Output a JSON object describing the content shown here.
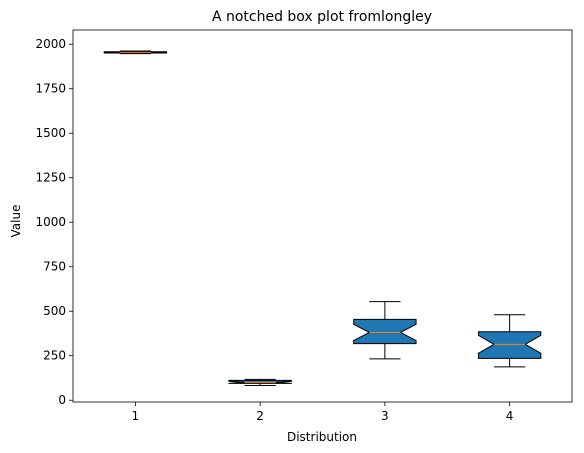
{
  "chart_data": {
    "type": "boxplot",
    "title": "A notched box plot fromlongley",
    "xlabel": "Distribution",
    "ylabel": "Value",
    "ylim": [
      -10,
      2080
    ],
    "yticks": [
      0,
      250,
      500,
      750,
      1000,
      1250,
      1500,
      1750,
      2000
    ],
    "categories": [
      "1",
      "2",
      "3",
      "4"
    ],
    "notched": true,
    "colors": {
      "box_fill": "#1f77b4",
      "median": "#ff7f0e",
      "edge": "#000000"
    },
    "boxes": [
      {
        "label": "1",
        "whisker_low": 1947,
        "q1": 1951,
        "median": 1954.5,
        "q3": 1958,
        "whisker_high": 1962
      },
      {
        "label": "2",
        "whisker_low": 83,
        "q1": 94.5,
        "median": 100.6,
        "q3": 111.5,
        "whisker_high": 117
      },
      {
        "label": "3",
        "whisker_low": 232,
        "q1": 318,
        "median": 381,
        "q3": 454,
        "whisker_high": 554
      },
      {
        "label": "4",
        "whisker_low": 187,
        "q1": 235,
        "median": 314,
        "q3": 385,
        "whisker_high": 480
      }
    ]
  }
}
